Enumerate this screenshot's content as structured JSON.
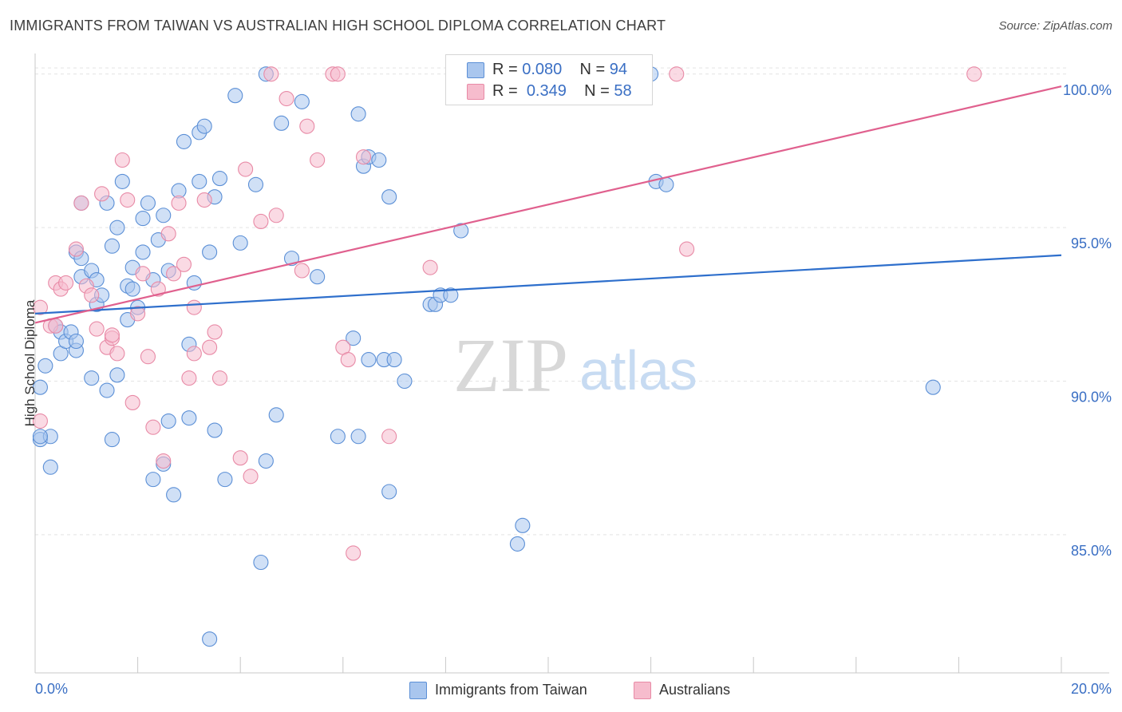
{
  "header": {
    "title": "IMMIGRANTS FROM TAIWAN VS AUSTRALIAN HIGH SCHOOL DIPLOMA CORRELATION CHART",
    "source": "Source: ZipAtlas.com"
  },
  "legend_top": {
    "rows": [
      {
        "r_label": "R = ",
        "r_value": "0.080",
        "n_label": "N = ",
        "n_value": "94"
      },
      {
        "r_label": "R = ",
        "r_value": "0.349",
        "n_label": "N = ",
        "n_value": "58"
      }
    ]
  },
  "legend_bottom": {
    "items": [
      "Immigrants from Taiwan",
      "Australians"
    ]
  },
  "watermark": {
    "zip": "ZIP",
    "atlas": "atlas"
  },
  "colors": {
    "blue_fill": "#a9c6ee",
    "blue_stroke": "#5b8fd6",
    "blue_line": "#2e6fcc",
    "pink_fill": "#f6bccd",
    "pink_stroke": "#e88aa6",
    "pink_line": "#e0608e",
    "tick_text": "#3a6fc4",
    "grid": "#e4e4e4"
  },
  "chart_data": {
    "type": "scatter",
    "title": "IMMIGRANTS FROM TAIWAN VS AUSTRALIAN HIGH SCHOOL DIPLOMA CORRELATION CHART",
    "xlabel": "",
    "ylabel": "High School Diploma",
    "xlim": [
      0,
      20
    ],
    "ylim": [
      80.5,
      100.8
    ],
    "x_tick_labels": [
      {
        "value": 0,
        "label": "0.0%"
      },
      {
        "value": 20,
        "label": "20.0%"
      }
    ],
    "y_tick_labels": [
      {
        "value": 85,
        "label": "85.0%"
      },
      {
        "value": 90,
        "label": "90.0%"
      },
      {
        "value": 95,
        "label": "95.0%"
      },
      {
        "value": 100,
        "label": "100.0%"
      }
    ],
    "grid": true,
    "legend_position": "top-center",
    "series": [
      {
        "name": "Immigrants from Taiwan",
        "color": "blue",
        "r": 0.08,
        "n": 94,
        "trend": {
          "x": [
            0,
            20
          ],
          "y": [
            92.2,
            94.1
          ]
        },
        "points": [
          [
            0.1,
            88.1
          ],
          [
            0.1,
            89.8
          ],
          [
            0.2,
            90.5
          ],
          [
            0.3,
            88.2
          ],
          [
            0.3,
            87.2
          ],
          [
            0.4,
            91.8
          ],
          [
            0.5,
            91.6
          ],
          [
            0.5,
            90.9
          ],
          [
            0.6,
            91.3
          ],
          [
            0.7,
            91.6
          ],
          [
            0.8,
            91.0
          ],
          [
            0.8,
            91.3
          ],
          [
            0.9,
            93.4
          ],
          [
            0.9,
            95.8
          ],
          [
            0.8,
            94.2
          ],
          [
            0.9,
            94.0
          ],
          [
            1.1,
            93.6
          ],
          [
            1.2,
            93.3
          ],
          [
            1.2,
            92.5
          ],
          [
            1.3,
            92.8
          ],
          [
            1.4,
            95.8
          ],
          [
            1.4,
            89.7
          ],
          [
            1.1,
            90.1
          ],
          [
            1.5,
            88.1
          ],
          [
            1.5,
            94.4
          ],
          [
            1.6,
            95.0
          ],
          [
            1.6,
            90.2
          ],
          [
            1.7,
            96.5
          ],
          [
            1.8,
            93.1
          ],
          [
            1.8,
            92.0
          ],
          [
            1.9,
            93.7
          ],
          [
            1.9,
            93.0
          ],
          [
            2.0,
            92.4
          ],
          [
            2.1,
            94.2
          ],
          [
            2.1,
            95.3
          ],
          [
            2.2,
            95.8
          ],
          [
            2.4,
            94.6
          ],
          [
            2.5,
            95.4
          ],
          [
            2.3,
            93.3
          ],
          [
            2.6,
            93.6
          ],
          [
            2.5,
            87.3
          ],
          [
            2.6,
            88.7
          ],
          [
            2.3,
            86.8
          ],
          [
            2.7,
            86.3
          ],
          [
            2.8,
            96.2
          ],
          [
            2.9,
            97.8
          ],
          [
            3.0,
            91.2
          ],
          [
            3.0,
            88.8
          ],
          [
            3.1,
            93.2
          ],
          [
            3.2,
            96.5
          ],
          [
            3.2,
            98.1
          ],
          [
            3.3,
            98.3
          ],
          [
            3.4,
            94.2
          ],
          [
            3.5,
            96.0
          ],
          [
            3.5,
            88.4
          ],
          [
            3.6,
            96.6
          ],
          [
            3.7,
            86.8
          ],
          [
            3.4,
            81.6
          ],
          [
            3.9,
            99.3
          ],
          [
            4.0,
            94.5
          ],
          [
            4.3,
            96.4
          ],
          [
            4.4,
            84.1
          ],
          [
            4.5,
            87.4
          ],
          [
            4.5,
            100.0
          ],
          [
            4.7,
            88.9
          ],
          [
            4.8,
            98.4
          ],
          [
            5.0,
            94.0
          ],
          [
            5.2,
            99.1
          ],
          [
            5.5,
            93.4
          ],
          [
            5.9,
            88.2
          ],
          [
            6.2,
            91.4
          ],
          [
            6.3,
            98.7
          ],
          [
            6.3,
            88.2
          ],
          [
            6.4,
            97.0
          ],
          [
            6.5,
            97.3
          ],
          [
            6.5,
            90.7
          ],
          [
            6.7,
            97.2
          ],
          [
            6.8,
            90.7
          ],
          [
            6.9,
            96.0
          ],
          [
            7.0,
            90.7
          ],
          [
            6.9,
            86.4
          ],
          [
            7.2,
            90.0
          ],
          [
            7.7,
            92.5
          ],
          [
            7.8,
            92.5
          ],
          [
            7.9,
            92.8
          ],
          [
            8.1,
            92.8
          ],
          [
            8.3,
            94.9
          ],
          [
            9.4,
            84.7
          ],
          [
            9.5,
            85.3
          ],
          [
            12.0,
            100.0
          ],
          [
            12.1,
            96.5
          ],
          [
            12.3,
            96.4
          ],
          [
            17.5,
            89.8
          ],
          [
            0.1,
            88.2
          ]
        ]
      },
      {
        "name": "Australians",
        "color": "pink",
        "r": 0.349,
        "n": 58,
        "trend": {
          "x": [
            0,
            20
          ],
          "y": [
            91.9,
            99.6
          ]
        },
        "points": [
          [
            0.1,
            88.7
          ],
          [
            0.1,
            92.4
          ],
          [
            0.3,
            91.8
          ],
          [
            0.4,
            93.2
          ],
          [
            0.5,
            93.0
          ],
          [
            0.6,
            93.2
          ],
          [
            0.8,
            94.3
          ],
          [
            0.9,
            95.8
          ],
          [
            1.0,
            93.1
          ],
          [
            1.1,
            92.8
          ],
          [
            1.2,
            91.7
          ],
          [
            1.3,
            96.1
          ],
          [
            1.4,
            91.1
          ],
          [
            1.5,
            91.4
          ],
          [
            1.5,
            91.5
          ],
          [
            1.6,
            90.9
          ],
          [
            1.7,
            97.2
          ],
          [
            1.8,
            95.9
          ],
          [
            1.9,
            89.3
          ],
          [
            2.0,
            92.2
          ],
          [
            2.1,
            93.5
          ],
          [
            2.2,
            90.8
          ],
          [
            2.3,
            88.5
          ],
          [
            2.4,
            93.0
          ],
          [
            2.5,
            87.4
          ],
          [
            2.6,
            94.8
          ],
          [
            2.7,
            93.5
          ],
          [
            2.8,
            95.8
          ],
          [
            2.9,
            93.8
          ],
          [
            3.0,
            90.1
          ],
          [
            3.1,
            90.9
          ],
          [
            3.1,
            92.4
          ],
          [
            3.3,
            95.9
          ],
          [
            3.4,
            91.1
          ],
          [
            3.5,
            91.6
          ],
          [
            3.6,
            90.1
          ],
          [
            4.0,
            87.5
          ],
          [
            4.1,
            96.9
          ],
          [
            4.2,
            86.9
          ],
          [
            4.4,
            95.2
          ],
          [
            4.6,
            100.0
          ],
          [
            4.7,
            95.4
          ],
          [
            4.9,
            99.2
          ],
          [
            5.2,
            93.6
          ],
          [
            5.3,
            98.3
          ],
          [
            5.5,
            97.2
          ],
          [
            5.8,
            100.0
          ],
          [
            5.9,
            100.0
          ],
          [
            6.0,
            91.1
          ],
          [
            6.1,
            90.7
          ],
          [
            6.2,
            84.4
          ],
          [
            6.4,
            97.3
          ],
          [
            6.9,
            88.2
          ],
          [
            7.7,
            93.7
          ],
          [
            12.5,
            100.0
          ],
          [
            12.7,
            94.3
          ],
          [
            18.3,
            100.0
          ],
          [
            0.4,
            91.8
          ]
        ]
      }
    ]
  }
}
